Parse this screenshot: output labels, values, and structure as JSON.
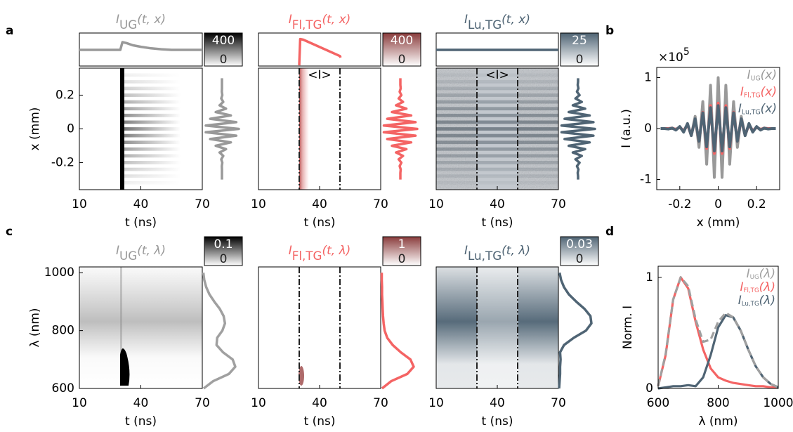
{
  "chart_data": [
    {
      "type": "heatmap",
      "panel_label": "a",
      "title": {
        "symbol": "I",
        "subscript": "UG",
        "argument": "(t, x)"
      },
      "color": "#999999",
      "colormap_color": "#000000",
      "colorbar": {
        "max": 400,
        "min": 0
      },
      "xlabel": "t (ns)",
      "ylabel": "x (mm)",
      "xlim": [
        10,
        70
      ],
      "xticks": [
        10,
        40,
        70
      ],
      "ylim": [
        -0.36,
        0.36
      ],
      "yticks": [
        -0.2,
        0,
        0.2
      ],
      "time_trace": {
        "x": [
          10,
          29,
          30,
          31,
          33,
          36,
          40,
          45,
          50,
          55,
          60,
          70
        ],
        "values": [
          0.5,
          0.5,
          0.5,
          0.75,
          0.72,
          0.65,
          0.6,
          0.55,
          0.52,
          0.5,
          0.5,
          0.5
        ]
      }
    },
    {
      "type": "heatmap",
      "title": {
        "symbol": "I",
        "subscript": "Fl,TG",
        "argument": "(t, x)"
      },
      "color": "#f46464",
      "colormap_color": "#8a3c3c",
      "colorbar": {
        "max": 400,
        "min": 0
      },
      "xlabel": "t (ns)",
      "xlim": [
        10,
        70
      ],
      "xticks": [
        10,
        40,
        70
      ],
      "ylim": [
        -0.36,
        0.36
      ],
      "window": [
        30,
        50
      ],
      "window_label": "<I>",
      "time_trace": {
        "x": [
          30,
          30.5,
          32,
          50,
          50.3
        ],
        "values": [
          0,
          0.85,
          0.83,
          0.3,
          0.25
        ]
      }
    },
    {
      "type": "heatmap",
      "title": {
        "symbol": "I",
        "subscript": "Lu,TG",
        "argument": "(t, x)"
      },
      "color": "#4f6474",
      "colormap_color": "#4f6474",
      "colorbar": {
        "max": 25,
        "min": 0
      },
      "xlabel": "t (ns)",
      "xlim": [
        10,
        70
      ],
      "xticks": [
        10,
        40,
        70
      ],
      "ylim": [
        -0.36,
        0.36
      ],
      "window": [
        30,
        50
      ],
      "window_label": "<I>",
      "time_trace": {
        "x": [
          10,
          70
        ],
        "values": [
          0.5,
          0.5
        ]
      }
    },
    {
      "type": "line",
      "panel_label": "b",
      "y_multiplier": {
        "base": "×10",
        "exponent": "5"
      },
      "xlabel": "x (mm)",
      "ylabel": "I (a.u.)",
      "xlim": [
        -0.32,
        0.32
      ],
      "xticks": [
        -0.2,
        0,
        0.2
      ],
      "ylim": [
        -1.2,
        1.2
      ],
      "yticks": [
        -1,
        0,
        1
      ],
      "legend": "upper right",
      "x": [
        -0.3,
        -0.28,
        -0.26,
        -0.24,
        -0.22,
        -0.2,
        -0.18,
        -0.16,
        -0.14,
        -0.12,
        -0.1,
        -0.08,
        -0.06,
        -0.04,
        -0.02,
        0,
        0.02,
        0.04,
        0.06,
        0.08,
        0.1,
        0.12,
        0.14,
        0.16,
        0.18,
        0.2,
        0.22,
        0.24,
        0.26,
        0.28,
        0.3
      ],
      "series": [
        {
          "name": {
            "symbol": "I",
            "subscript": "UG",
            "argument": "(x)"
          },
          "color": "#999999",
          "values": [
            0,
            0,
            0,
            0,
            -0.01,
            0.02,
            -0.04,
            0.08,
            -0.14,
            0.24,
            -0.37,
            0.53,
            -0.7,
            0.85,
            -0.96,
            1,
            -0.96,
            0.85,
            -0.7,
            0.53,
            -0.37,
            0.24,
            -0.14,
            0.08,
            -0.04,
            0.02,
            -0.01,
            0,
            0,
            0,
            0
          ]
        },
        {
          "name": {
            "symbol": "I",
            "subscript": "Fl,TG",
            "argument": "(x)"
          },
          "color": "#f46464",
          "values": [
            0,
            0,
            0,
            0.01,
            -0.02,
            0.03,
            -0.05,
            0.08,
            -0.13,
            0.18,
            -0.25,
            0.32,
            -0.39,
            0.45,
            -0.49,
            0.5,
            -0.49,
            0.45,
            -0.39,
            0.32,
            -0.25,
            0.18,
            -0.13,
            0.08,
            -0.05,
            0.03,
            -0.02,
            0.01,
            0,
            0,
            0
          ]
        },
        {
          "name": {
            "symbol": "I",
            "subscript": "Lu,TG",
            "argument": "(x)"
          },
          "color": "#4f6474",
          "values": [
            0,
            0,
            -0.01,
            0.01,
            -0.03,
            0.04,
            -0.07,
            0.1,
            -0.14,
            0.19,
            -0.25,
            0.31,
            -0.36,
            0.41,
            -0.44,
            0.45,
            -0.44,
            0.41,
            -0.36,
            0.31,
            -0.25,
            0.19,
            -0.14,
            0.1,
            -0.07,
            0.04,
            -0.03,
            0.01,
            -0.01,
            0,
            0
          ]
        }
      ]
    },
    {
      "type": "heatmap",
      "panel_label": "c",
      "title": {
        "symbol": "I",
        "subscript": "UG",
        "argument": "(t, λ)"
      },
      "color": "#999999",
      "colormap_color": "#000000",
      "colorbar": {
        "max": 0.1,
        "min": 0
      },
      "xlabel": "t (ns)",
      "ylabel": "λ (nm)",
      "xlim": [
        10,
        70
      ],
      "xticks": [
        10,
        40,
        70
      ],
      "ylim": [
        600,
        1020
      ],
      "yticks": [
        600,
        800,
        1000
      ]
    },
    {
      "type": "heatmap",
      "title": {
        "symbol": "I",
        "subscript": "Fl,TG",
        "argument": "(t, λ)"
      },
      "color": "#f46464",
      "colormap_color": "#8a3c3c",
      "colorbar": {
        "max": 1,
        "min": 0
      },
      "xlabel": "t (ns)",
      "xlim": [
        10,
        70
      ],
      "xticks": [
        10,
        40,
        70
      ],
      "ylim": [
        600,
        1020
      ],
      "window": [
        30,
        50
      ]
    },
    {
      "type": "heatmap",
      "title": {
        "symbol": "I",
        "subscript": "Lu,TG",
        "argument": "(t, λ)"
      },
      "color": "#4f6474",
      "colormap_color": "#4f6474",
      "colorbar": {
        "max": 0.03,
        "min": 0
      },
      "xlabel": "t (ns)",
      "xlim": [
        10,
        70
      ],
      "xticks": [
        10,
        40,
        70
      ],
      "ylim": [
        600,
        1020
      ],
      "window": [
        30,
        50
      ]
    },
    {
      "type": "line",
      "panel_label": "d",
      "xlabel": "λ (nm)",
      "ylabel": "Norm. I",
      "xlim": [
        600,
        1000
      ],
      "xticks": [
        600,
        800,
        1000
      ],
      "ylim": [
        0,
        1.1
      ],
      "yticks": [
        0,
        1
      ],
      "legend": "upper right",
      "x": [
        600,
        625,
        650,
        675,
        700,
        725,
        750,
        775,
        800,
        825,
        850,
        875,
        900,
        925,
        950,
        975,
        1000
      ],
      "series": [
        {
          "name": {
            "symbol": "I",
            "subscript": "UG",
            "argument": "(λ)"
          },
          "color": "#a0a0a0",
          "dashed": true,
          "values": [
            0.02,
            0.31,
            0.8,
            1.0,
            0.92,
            0.62,
            0.42,
            0.44,
            0.6,
            0.68,
            0.64,
            0.52,
            0.35,
            0.2,
            0.1,
            0.04,
            0.01
          ]
        },
        {
          "name": {
            "symbol": "I",
            "subscript": "Fl,TG",
            "argument": "(λ)"
          },
          "color": "#f46464",
          "values": [
            0.02,
            0.3,
            0.8,
            1.0,
            0.9,
            0.6,
            0.35,
            0.18,
            0.1,
            0.07,
            0.05,
            0.04,
            0.03,
            0.02,
            0.02,
            0.01,
            0.01
          ]
        },
        {
          "name": {
            "symbol": "I",
            "subscript": "Lu,TG",
            "argument": "(λ)"
          },
          "color": "#4f6474",
          "values": [
            0,
            0.01,
            0.02,
            0.02,
            0.03,
            0.02,
            0.1,
            0.3,
            0.55,
            0.66,
            0.64,
            0.52,
            0.35,
            0.2,
            0.1,
            0.04,
            0.01
          ]
        }
      ]
    }
  ]
}
